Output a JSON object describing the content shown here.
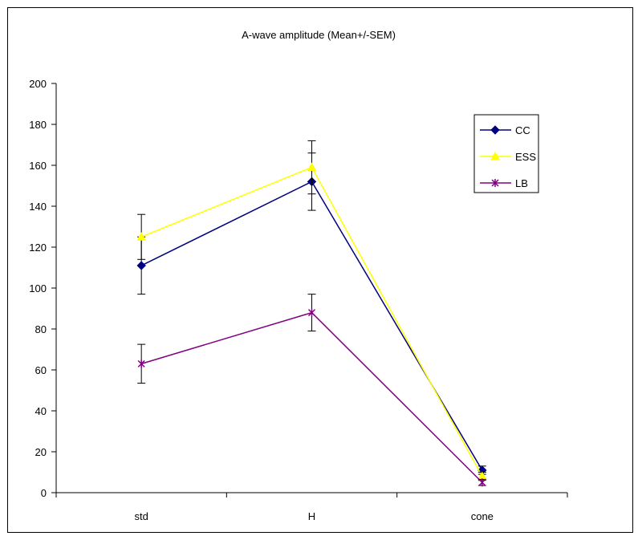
{
  "chart_data": {
    "type": "line",
    "title": "A-wave amplitude (Mean+/-SEM)",
    "xlabel": "",
    "ylabel": "",
    "categories": [
      "std",
      "H",
      "cone"
    ],
    "ylim": [
      0,
      200
    ],
    "yticks": [
      0,
      20,
      40,
      60,
      80,
      100,
      120,
      140,
      160,
      180,
      200
    ],
    "grid": false,
    "legend_position": "right",
    "series": [
      {
        "name": "CC",
        "color": "#000080",
        "marker": "diamond",
        "values": [
          111,
          152,
          11
        ],
        "errors": [
          14,
          14,
          2
        ]
      },
      {
        "name": "ESS",
        "color": "#ffff00",
        "marker": "triangle",
        "values": [
          125,
          159,
          8
        ],
        "errors": [
          11,
          13,
          2
        ]
      },
      {
        "name": "LB",
        "color": "#800080",
        "marker": "star",
        "values": [
          63,
          88,
          5
        ],
        "errors": [
          9.5,
          9,
          1.5
        ]
      }
    ]
  }
}
